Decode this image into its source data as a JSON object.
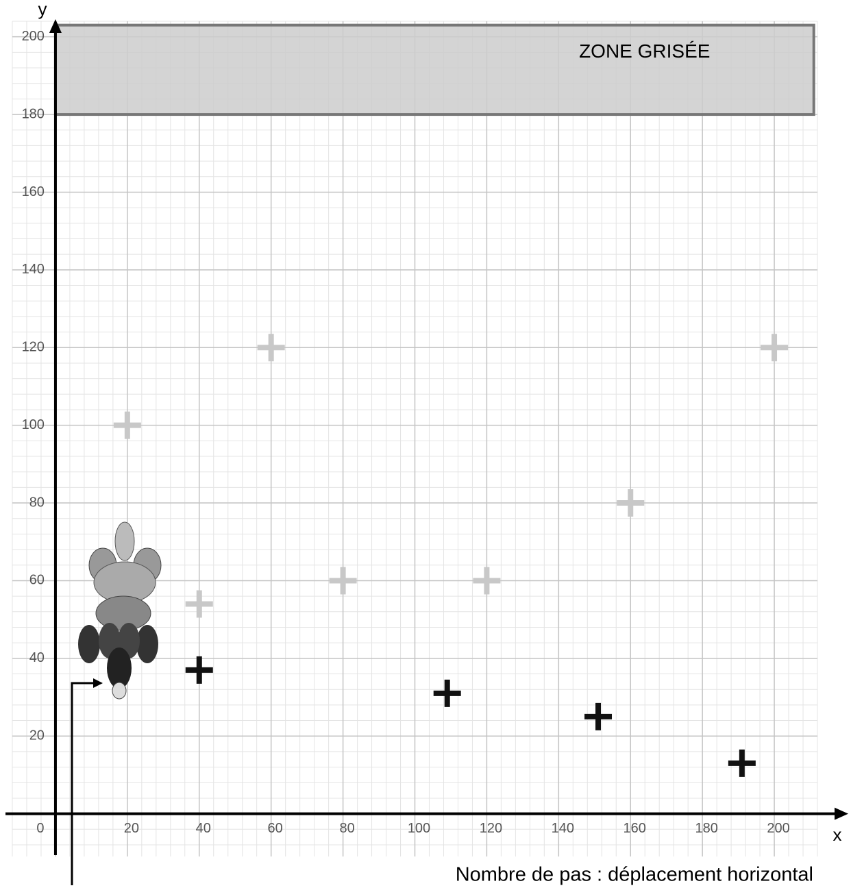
{
  "chart_data": {
    "type": "scatter",
    "x_label": "x",
    "y_label": "y",
    "caption": "Nombre de pas : déplacement horizontal",
    "zone": {
      "label": "ZONE GRISÉE",
      "xlim": [
        0,
        211
      ],
      "ylim": [
        180,
        203
      ],
      "color": "#cccccc"
    },
    "series": [
      {
        "color": "#c8c8c8",
        "x": [
          20,
          60,
          40,
          80,
          120,
          160,
          200
        ],
        "values": [
          100,
          120,
          54,
          60,
          60,
          80,
          120
        ]
      },
      {
        "color": "#111111",
        "x": [
          40,
          109,
          151,
          191
        ],
        "values": [
          37,
          31,
          25,
          13
        ]
      }
    ],
    "xlim": [
      -12,
      212
    ],
    "ylim": [
      -11,
      204
    ],
    "xticks": [
      0,
      20,
      40,
      60,
      80,
      100,
      120,
      140,
      160,
      180,
      200
    ],
    "yticks": [
      20,
      40,
      60,
      80,
      100,
      120,
      140,
      160,
      180,
      200
    ],
    "grid": true,
    "minor_grid": 4
  }
}
